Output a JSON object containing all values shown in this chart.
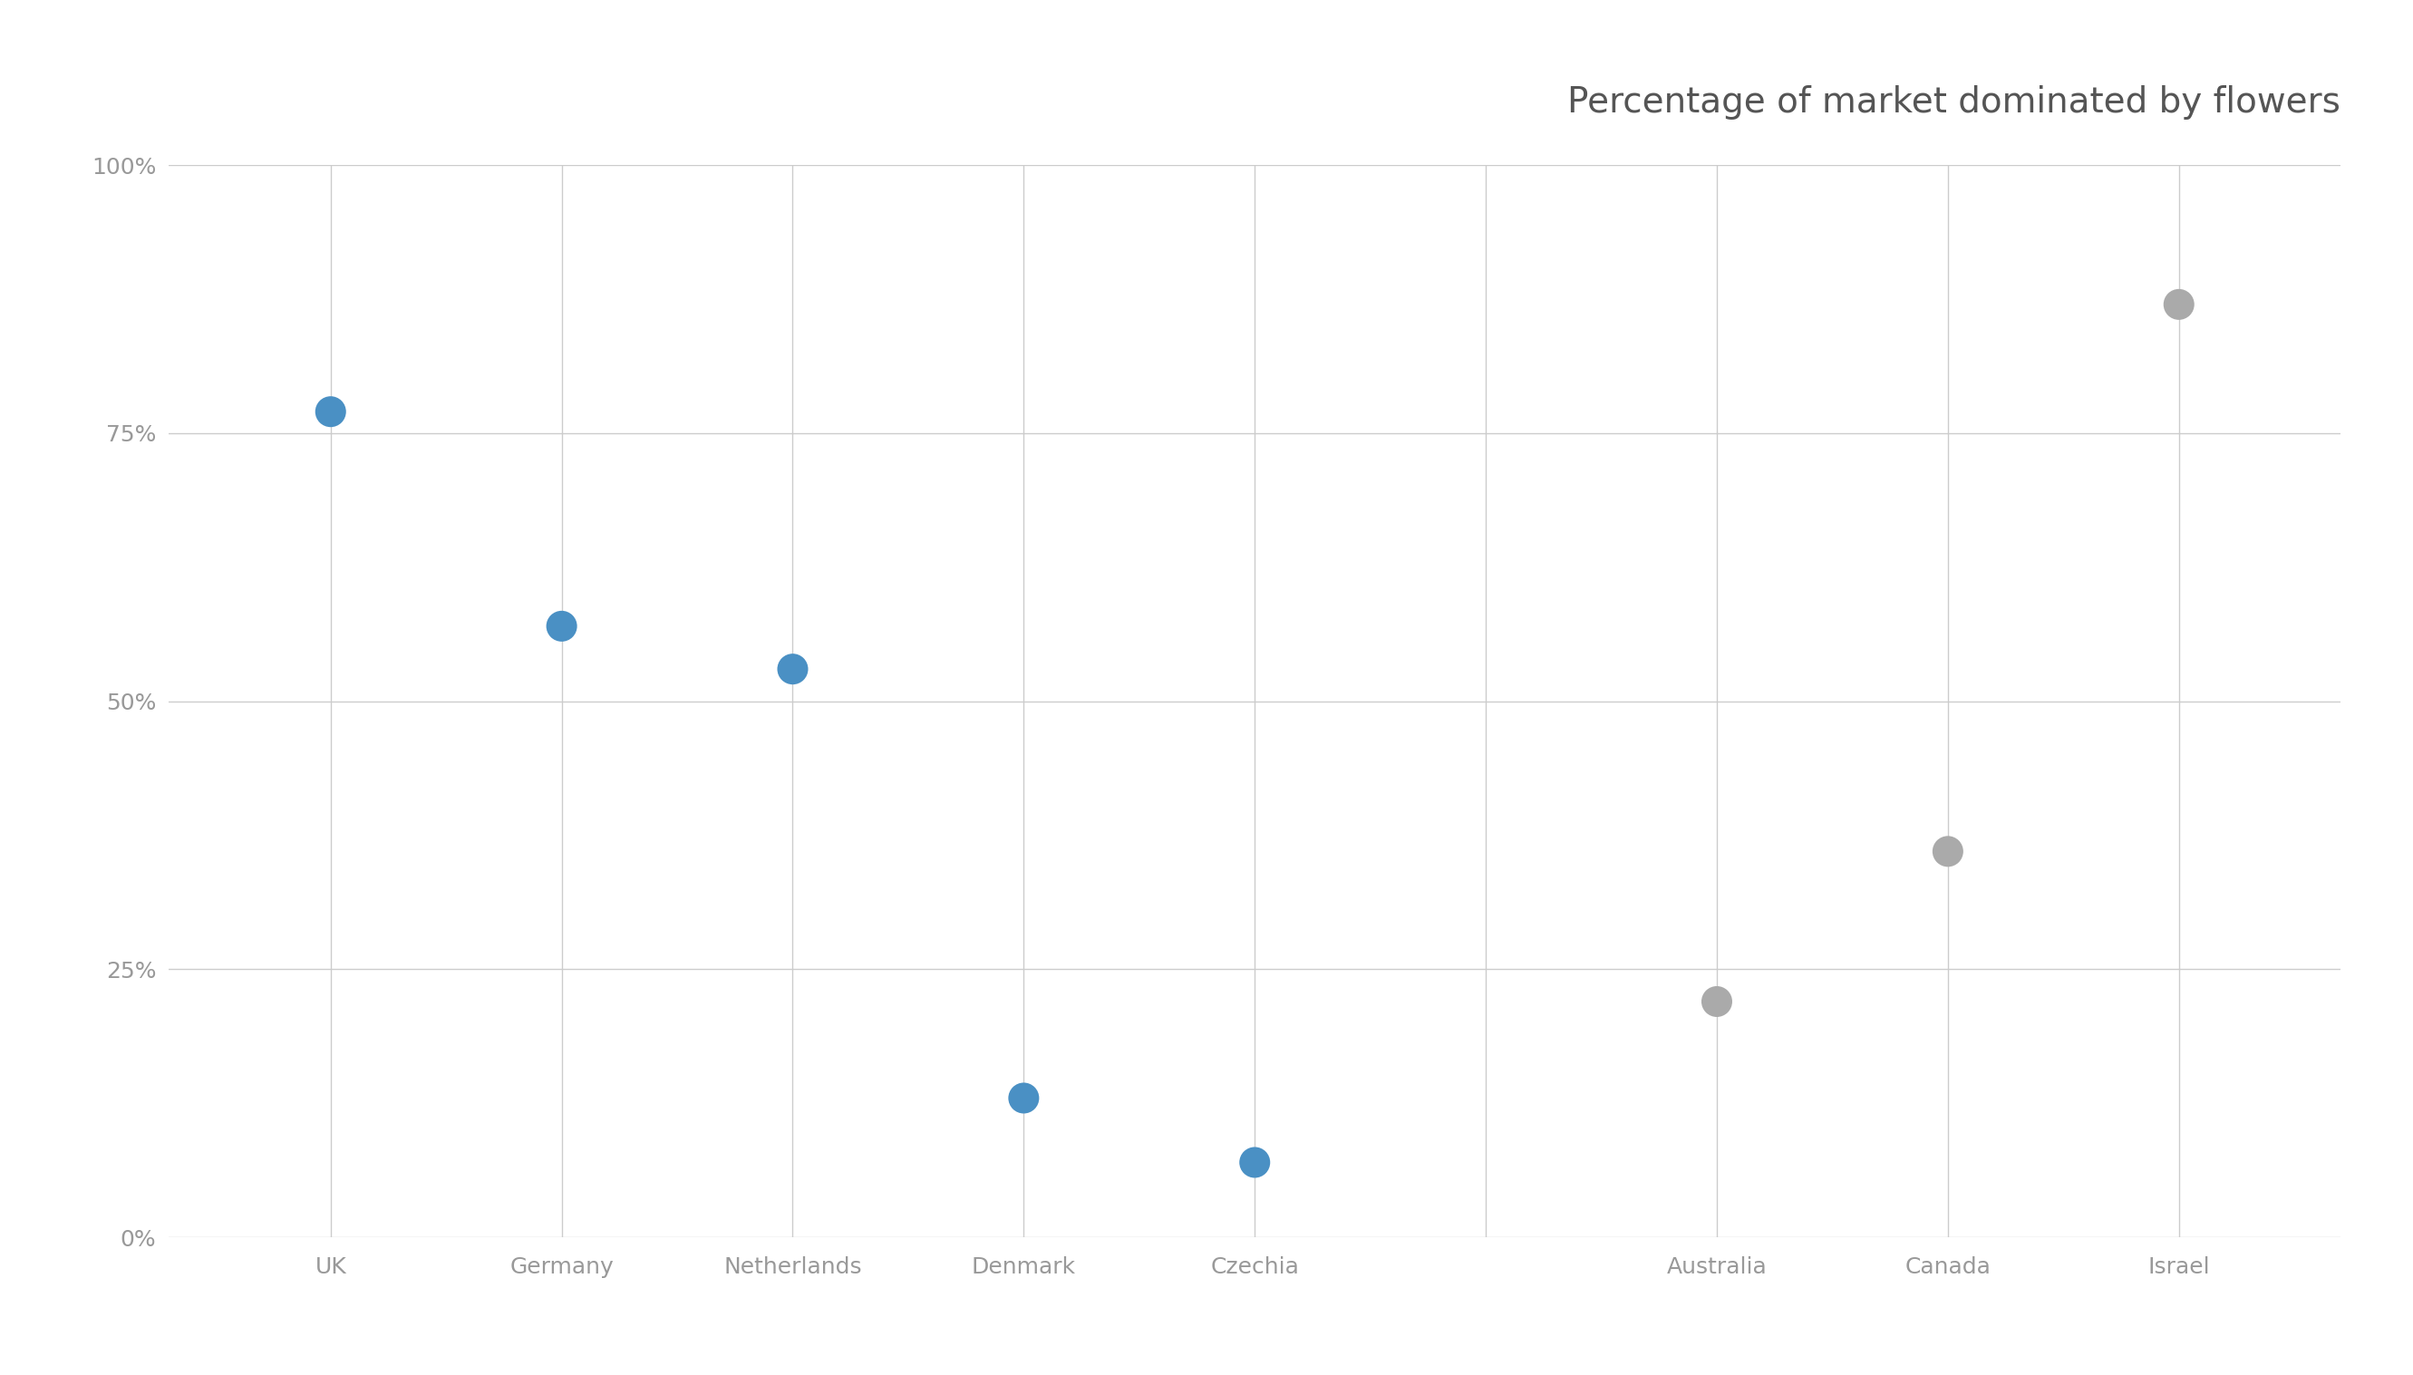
{
  "title": "Percentage of market dominated by flowers",
  "categories": [
    "UK",
    "Germany",
    "Netherlands",
    "Denmark",
    "Czechia",
    "",
    "Australia",
    "Canada",
    "Israel"
  ],
  "x_positions": [
    1,
    2,
    3,
    4,
    5,
    6,
    7,
    8,
    9
  ],
  "values": [
    0.77,
    0.57,
    0.53,
    0.13,
    0.07,
    null,
    0.22,
    0.36,
    0.87
  ],
  "colors": [
    "#4A90C4",
    "#4A90C4",
    "#4A90C4",
    "#4A90C4",
    "#4A90C4",
    null,
    "#AAAAAA",
    "#AAAAAA",
    "#AAAAAA"
  ],
  "ylim": [
    0,
    1.0
  ],
  "yticks": [
    0,
    0.25,
    0.5,
    0.75,
    1.0
  ],
  "ytick_labels": [
    "0%",
    "25%",
    "50%",
    "75%",
    "100%"
  ],
  "marker_size": 600,
  "title_fontsize": 28,
  "tick_fontsize": 18,
  "background_color": "#FFFFFF",
  "grid_color": "#CCCCCC",
  "title_color": "#555555",
  "tick_color": "#999999"
}
